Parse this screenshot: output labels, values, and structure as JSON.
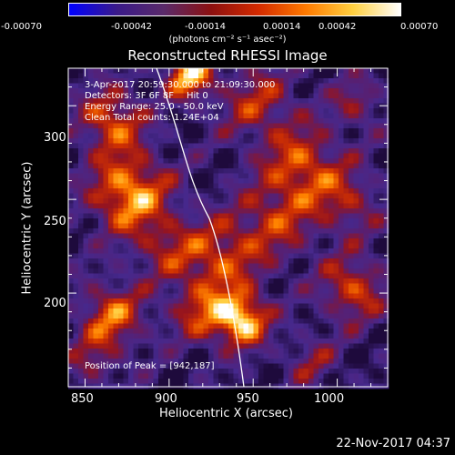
{
  "colorbar": {
    "ticks": [
      "-0.00070",
      "-0.00042",
      "-0.00014",
      "0.00014",
      "0.00042",
      "0.00070"
    ],
    "units_line": "(photons cm⁻² s⁻¹ asec⁻²)",
    "colors": [
      "#0000ff",
      "#3a1a8a",
      "#5a2a6a",
      "#8c1010",
      "#d42a00",
      "#ff7a00",
      "#ffd040",
      "#ffffff"
    ]
  },
  "plot": {
    "title": "Reconstructed RHESSI Image",
    "x_label": "Heliocentric X (arcsec)",
    "y_label": "Heliocentric Y (arcsec)",
    "x_ticks": [
      "850",
      "900",
      "950",
      "1000"
    ],
    "y_ticks": [
      "300",
      "250",
      "200"
    ],
    "x_range": [
      840,
      1030
    ],
    "y_range": [
      150,
      320
    ]
  },
  "info": {
    "time_range": "3-Apr-2017 20:59:30.000 to 21:09:30.000",
    "detectors": "Detectors: 3F 6F 8F",
    "flags": "Hit 0",
    "energy": "Energy Range: 25.0 - 50.0 keV",
    "clean": "Clean     Total counts: 1.24E+04",
    "peak": "Position of Peak = [942,187]"
  },
  "peak": {
    "x": 942,
    "y": 187
  },
  "footer": {
    "timestamp": "22-Nov-2017 04:37"
  }
}
